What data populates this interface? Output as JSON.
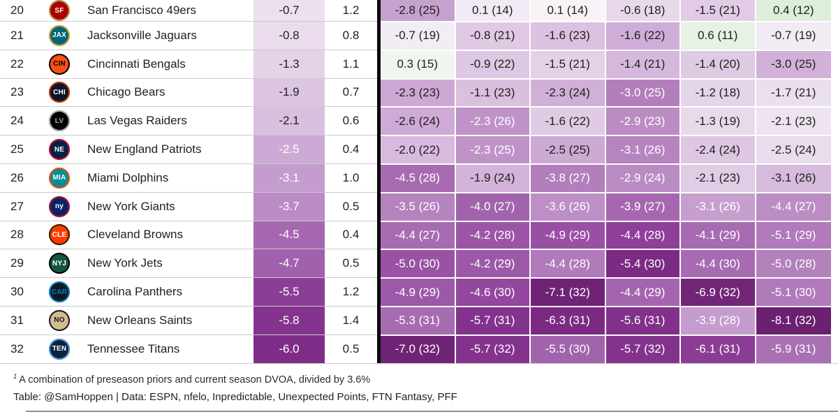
{
  "chart_data": {
    "type": "table",
    "note": "Lower portion (rows 20-32) of an NFL team rating heat-map table; column headers are cropped out of view above the screenshot",
    "footnote_marker": "1",
    "footnote": "A combination of preseason priors and current season DVOA, divided by 3.6%",
    "credit": "Table: @SamHoppen | Data: ESPN, nfelo, Inpredictable, Unexpected Points, FTN Fantasy, PFF",
    "palette": {
      "divider_line": "#0a0a0a",
      "row_separator": "#cbcbcb",
      "text_dark": "#1f1f1f",
      "text_light": "#ffffff",
      "positive_green_example": "#ddeeda",
      "negative_purple_dark_example": "#6b2070"
    },
    "rows": [
      {
        "rank": "20",
        "team": "San Francisco 49ers",
        "logo": {
          "abbr": "SF",
          "bg": "#AA0000",
          "ring": "#B3995D",
          "fg": "#FFFFFF"
        },
        "rating": {
          "v": "-0.7",
          "bg": "#ecdfee",
          "fg": "#1f1f1f"
        },
        "secondary": "1.2",
        "heat": [
          {
            "v": "-2.8",
            "r": "25",
            "bg": "#c6a1cd",
            "fg": "#1f1f1f"
          },
          {
            "v": "0.1",
            "r": "14",
            "bg": "#f2eaf4",
            "fg": "#1f1f1f"
          },
          {
            "v": "0.1",
            "r": "14",
            "bg": "#f7f3f7",
            "fg": "#1f1f1f"
          },
          {
            "v": "-0.6",
            "r": "18",
            "bg": "#e7d8ea",
            "fg": "#1f1f1f"
          },
          {
            "v": "-1.5",
            "r": "21",
            "bg": "#e1cbe5",
            "fg": "#1f1f1f"
          },
          {
            "v": "0.4",
            "r": "12",
            "bg": "#ddeeda",
            "fg": "#1f1f1f"
          }
        ]
      },
      {
        "rank": "21",
        "team": "Jacksonville Jaguars",
        "logo": {
          "abbr": "JAX",
          "bg": "#006778",
          "ring": "#D7A22A",
          "fg": "#FFFFFF"
        },
        "rating": {
          "v": "-0.8",
          "bg": "#eadcec",
          "fg": "#1f1f1f"
        },
        "secondary": "0.8",
        "heat": [
          {
            "v": "-0.7",
            "r": "19",
            "bg": "#f2ecf4",
            "fg": "#1f1f1f"
          },
          {
            "v": "-0.8",
            "r": "21",
            "bg": "#dfc9e3",
            "fg": "#1f1f1f"
          },
          {
            "v": "-1.6",
            "r": "23",
            "bg": "#dbc2e0",
            "fg": "#1f1f1f"
          },
          {
            "v": "-1.6",
            "r": "22",
            "bg": "#cfadd6",
            "fg": "#1f1f1f"
          },
          {
            "v": "0.6",
            "r": "11",
            "bg": "#e7f2e4",
            "fg": "#1f1f1f"
          },
          {
            "v": "-0.7",
            "r": "19",
            "bg": "#f1ebf3",
            "fg": "#1f1f1f"
          }
        ]
      },
      {
        "rank": "22",
        "team": "Cincinnati Bengals",
        "logo": {
          "abbr": "CIN",
          "bg": "#FB4F14",
          "ring": "#000000",
          "fg": "#000000"
        },
        "rating": {
          "v": "-1.3",
          "bg": "#e4d2e8",
          "fg": "#1f1f1f"
        },
        "secondary": "1.1",
        "heat": [
          {
            "v": "0.3",
            "r": "15",
            "bg": "#f0f5ee",
            "fg": "#1f1f1f"
          },
          {
            "v": "-0.9",
            "r": "22",
            "bg": "#dec7e2",
            "fg": "#1f1f1f"
          },
          {
            "v": "-1.5",
            "r": "21",
            "bg": "#e3d1e7",
            "fg": "#1f1f1f"
          },
          {
            "v": "-1.4",
            "r": "21",
            "bg": "#d5b8dc",
            "fg": "#1f1f1f"
          },
          {
            "v": "-1.4",
            "r": "20",
            "bg": "#dfcae3",
            "fg": "#1f1f1f"
          },
          {
            "v": "-3.0",
            "r": "25",
            "bg": "#d2b1d9",
            "fg": "#1f1f1f"
          }
        ]
      },
      {
        "rank": "23",
        "team": "Chicago Bears",
        "logo": {
          "abbr": "CHI",
          "bg": "#0B162A",
          "ring": "#C83803",
          "fg": "#FFFFFF"
        },
        "rating": {
          "v": "-1.9",
          "bg": "#dcc5e1",
          "fg": "#1f1f1f"
        },
        "secondary": "0.7",
        "heat": [
          {
            "v": "-2.3",
            "r": "23",
            "bg": "#cda8d4",
            "fg": "#1f1f1f"
          },
          {
            "v": "-1.1",
            "r": "23",
            "bg": "#d9c0de",
            "fg": "#1f1f1f"
          },
          {
            "v": "-2.3",
            "r": "24",
            "bg": "#d1b0d8",
            "fg": "#1f1f1f"
          },
          {
            "v": "-3.0",
            "r": "25",
            "bg": "#b27fbc",
            "fg": "#ffffff"
          },
          {
            "v": "-1.2",
            "r": "18",
            "bg": "#e5d5e9",
            "fg": "#1f1f1f"
          },
          {
            "v": "-1.7",
            "r": "21",
            "bg": "#eadfed",
            "fg": "#1f1f1f"
          }
        ]
      },
      {
        "rank": "24",
        "team": "Las Vegas Raiders",
        "logo": {
          "abbr": "LV",
          "bg": "#000000",
          "ring": "#A5ACAF",
          "fg": "#A5ACAF"
        },
        "rating": {
          "v": "-2.1",
          "bg": "#d9c0df",
          "fg": "#1f1f1f"
        },
        "secondary": "0.6",
        "heat": [
          {
            "v": "-2.6",
            "r": "24",
            "bg": "#cfaad6",
            "fg": "#1f1f1f"
          },
          {
            "v": "-2.3",
            "r": "26",
            "bg": "#bf93c8",
            "fg": "#ffffff"
          },
          {
            "v": "-1.6",
            "r": "22",
            "bg": "#dfcce4",
            "fg": "#1f1f1f"
          },
          {
            "v": "-2.9",
            "r": "23",
            "bg": "#bb8cc4",
            "fg": "#ffffff"
          },
          {
            "v": "-1.3",
            "r": "19",
            "bg": "#e8daeb",
            "fg": "#1f1f1f"
          },
          {
            "v": "-2.1",
            "r": "23",
            "bg": "#eee4f0",
            "fg": "#1f1f1f"
          }
        ]
      },
      {
        "rank": "25",
        "team": "New England Patriots",
        "logo": {
          "abbr": "NE",
          "bg": "#002244",
          "ring": "#C60C30",
          "fg": "#FFFFFF"
        },
        "rating": {
          "v": "-2.5",
          "bg": "#cdaad5",
          "fg": "#ffffff"
        },
        "secondary": "0.4",
        "heat": [
          {
            "v": "-2.0",
            "r": "22",
            "bg": "#d8bade",
            "fg": "#1f1f1f"
          },
          {
            "v": "-2.3",
            "r": "25",
            "bg": "#bf93c8",
            "fg": "#ffffff"
          },
          {
            "v": "-2.5",
            "r": "25",
            "bg": "#cdaad4",
            "fg": "#1f1f1f"
          },
          {
            "v": "-3.1",
            "r": "26",
            "bg": "#b684bf",
            "fg": "#ffffff"
          },
          {
            "v": "-2.4",
            "r": "24",
            "bg": "#ddc7e2",
            "fg": "#1f1f1f"
          },
          {
            "v": "-2.5",
            "r": "24",
            "bg": "#e9dcec",
            "fg": "#1f1f1f"
          }
        ]
      },
      {
        "rank": "26",
        "team": "Miami Dolphins",
        "logo": {
          "abbr": "MIA",
          "bg": "#008E97",
          "ring": "#FC4C02",
          "fg": "#FFFFFF"
        },
        "rating": {
          "v": "-3.1",
          "bg": "#c49ccd",
          "fg": "#ffffff"
        },
        "secondary": "1.0",
        "heat": [
          {
            "v": "-4.5",
            "r": "28",
            "bg": "#a76bb1",
            "fg": "#ffffff"
          },
          {
            "v": "-1.9",
            "r": "24",
            "bg": "#d3b3da",
            "fg": "#1f1f1f"
          },
          {
            "v": "-3.8",
            "r": "27",
            "bg": "#b27fbc",
            "fg": "#ffffff"
          },
          {
            "v": "-2.9",
            "r": "24",
            "bg": "#bb8cc4",
            "fg": "#ffffff"
          },
          {
            "v": "-2.1",
            "r": "23",
            "bg": "#e0cce4",
            "fg": "#1f1f1f"
          },
          {
            "v": "-3.1",
            "r": "26",
            "bg": "#d6bbdc",
            "fg": "#1f1f1f"
          }
        ]
      },
      {
        "rank": "27",
        "team": "New York Giants",
        "logo": {
          "abbr": "ny",
          "bg": "#0B2265",
          "ring": "#A71930",
          "fg": "#FFFFFF"
        },
        "rating": {
          "v": "-3.7",
          "bg": "#bb8bc5",
          "fg": "#ffffff"
        },
        "secondary": "0.5",
        "heat": [
          {
            "v": "-3.5",
            "r": "26",
            "bg": "#b583be",
            "fg": "#ffffff"
          },
          {
            "v": "-4.0",
            "r": "27",
            "bg": "#a263ad",
            "fg": "#ffffff"
          },
          {
            "v": "-3.6",
            "r": "26",
            "bg": "#bd8fc6",
            "fg": "#ffffff"
          },
          {
            "v": "-3.9",
            "r": "27",
            "bg": "#a667b0",
            "fg": "#ffffff"
          },
          {
            "v": "-3.1",
            "r": "26",
            "bg": "#c79fce",
            "fg": "#ffffff"
          },
          {
            "v": "-4.4",
            "r": "27",
            "bg": "#bc8dc5",
            "fg": "#ffffff"
          }
        ]
      },
      {
        "rank": "28",
        "team": "Cleveland Browns",
        "logo": {
          "abbr": "CLE",
          "bg": "#FF3C00",
          "ring": "#311D00",
          "fg": "#FFFFFF"
        },
        "rating": {
          "v": "-4.5",
          "bg": "#a568b0",
          "fg": "#ffffff"
        },
        "secondary": "0.4",
        "heat": [
          {
            "v": "-4.4",
            "r": "27",
            "bg": "#a76bb1",
            "fg": "#ffffff"
          },
          {
            "v": "-4.2",
            "r": "28",
            "bg": "#9c55a6",
            "fg": "#ffffff"
          },
          {
            "v": "-4.9",
            "r": "29",
            "bg": "#9950a4",
            "fg": "#ffffff"
          },
          {
            "v": "-4.4",
            "r": "28",
            "bg": "#8f3f9a",
            "fg": "#ffffff"
          },
          {
            "v": "-4.1",
            "r": "29",
            "bg": "#a76bb1",
            "fg": "#ffffff"
          },
          {
            "v": "-5.1",
            "r": "29",
            "bg": "#b07abb",
            "fg": "#ffffff"
          }
        ]
      },
      {
        "rank": "29",
        "team": "New York Jets",
        "logo": {
          "abbr": "NYJ",
          "bg": "#125740",
          "ring": "#000000",
          "fg": "#FFFFFF"
        },
        "rating": {
          "v": "-4.7",
          "bg": "#a160ac",
          "fg": "#ffffff"
        },
        "secondary": "0.5",
        "heat": [
          {
            "v": "-5.0",
            "r": "30",
            "bg": "#9a52a4",
            "fg": "#ffffff"
          },
          {
            "v": "-4.2",
            "r": "29",
            "bg": "#9c59a7",
            "fg": "#ffffff"
          },
          {
            "v": "-4.4",
            "r": "28",
            "bg": "#b07abb",
            "fg": "#ffffff"
          },
          {
            "v": "-5.4",
            "r": "30",
            "bg": "#7b2b84",
            "fg": "#ffffff"
          },
          {
            "v": "-4.4",
            "r": "30",
            "bg": "#a76bb1",
            "fg": "#ffffff"
          },
          {
            "v": "-5.0",
            "r": "28",
            "bg": "#b381bc",
            "fg": "#ffffff"
          }
        ]
      },
      {
        "rank": "30",
        "team": "Carolina Panthers",
        "logo": {
          "abbr": "CAR",
          "bg": "#101820",
          "ring": "#0085CA",
          "fg": "#0085CA"
        },
        "rating": {
          "v": "-5.5",
          "bg": "#8b3e95",
          "fg": "#ffffff"
        },
        "secondary": "1.2",
        "heat": [
          {
            "v": "-4.9",
            "r": "29",
            "bg": "#9c59a7",
            "fg": "#ffffff"
          },
          {
            "v": "-4.6",
            "r": "30",
            "bg": "#93479e",
            "fg": "#ffffff"
          },
          {
            "v": "-7.1",
            "r": "32",
            "bg": "#6f2377",
            "fg": "#ffffff"
          },
          {
            "v": "-4.4",
            "r": "29",
            "bg": "#a465ae",
            "fg": "#ffffff"
          },
          {
            "v": "-6.9",
            "r": "32",
            "bg": "#722677",
            "fg": "#ffffff"
          },
          {
            "v": "-5.1",
            "r": "30",
            "bg": "#b07abb",
            "fg": "#ffffff"
          }
        ]
      },
      {
        "rank": "31",
        "team": "New Orleans Saints",
        "logo": {
          "abbr": "NO",
          "bg": "#D3BC8D",
          "ring": "#101820",
          "fg": "#101820"
        },
        "rating": {
          "v": "-5.8",
          "bg": "#84348e",
          "fg": "#ffffff"
        },
        "secondary": "1.4",
        "heat": [
          {
            "v": "-5.3",
            "r": "31",
            "bg": "#a76bb1",
            "fg": "#ffffff"
          },
          {
            "v": "-5.7",
            "r": "31",
            "bg": "#83338d",
            "fg": "#ffffff"
          },
          {
            "v": "-6.3",
            "r": "31",
            "bg": "#7a2a83",
            "fg": "#ffffff"
          },
          {
            "v": "-5.6",
            "r": "31",
            "bg": "#81318b",
            "fg": "#ffffff"
          },
          {
            "v": "-3.9",
            "r": "28",
            "bg": "#c49ccd",
            "fg": "#ffffff"
          },
          {
            "v": "-8.1",
            "r": "32",
            "bg": "#6b2070",
            "fg": "#ffffff"
          }
        ]
      },
      {
        "rank": "32",
        "team": "Tennessee Titans",
        "logo": {
          "abbr": "TEN",
          "bg": "#0C2340",
          "ring": "#4B92DB",
          "fg": "#FFFFFF"
        },
        "rating": {
          "v": "-6.0",
          "bg": "#7e2c88",
          "fg": "#ffffff"
        },
        "secondary": "0.5",
        "heat": [
          {
            "v": "-7.0",
            "r": "32",
            "bg": "#702475",
            "fg": "#ffffff"
          },
          {
            "v": "-5.7",
            "r": "32",
            "bg": "#83338d",
            "fg": "#ffffff"
          },
          {
            "v": "-5.5",
            "r": "30",
            "bg": "#a263ad",
            "fg": "#ffffff"
          },
          {
            "v": "-5.7",
            "r": "32",
            "bg": "#83338d",
            "fg": "#ffffff"
          },
          {
            "v": "-6.1",
            "r": "31",
            "bg": "#8b3d95",
            "fg": "#ffffff"
          },
          {
            "v": "-5.9",
            "r": "31",
            "bg": "#aa70b4",
            "fg": "#ffffff"
          }
        ]
      }
    ]
  }
}
